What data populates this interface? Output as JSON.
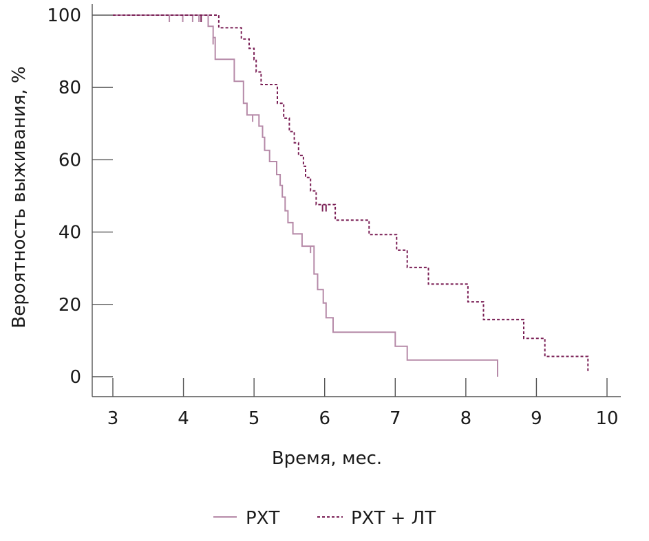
{
  "chart_data": {
    "type": "line",
    "title": "",
    "xlabel": "Время, мес.",
    "ylabel": "Вероятность выживания, %",
    "xlim": [
      3,
      10
    ],
    "ylim": [
      0,
      100
    ],
    "x_ticks": [
      3,
      4,
      5,
      6,
      7,
      8,
      9,
      10
    ],
    "y_ticks": [
      0,
      20,
      40,
      60,
      80,
      100
    ],
    "grid": false,
    "legend_position": "bottom-center",
    "series": [
      {
        "name": "РХТ",
        "style": "solid",
        "color": "#b68aa8",
        "steps": [
          [
            3.0,
            100
          ],
          [
            4.35,
            96.9
          ],
          [
            4.42,
            93.8
          ],
          [
            4.45,
            87.8
          ],
          [
            4.72,
            81.7
          ],
          [
            4.85,
            75.6
          ],
          [
            4.9,
            72.4
          ],
          [
            5.07,
            69.3
          ],
          [
            5.12,
            66.2
          ],
          [
            5.15,
            62.6
          ],
          [
            5.22,
            59.5
          ],
          [
            5.32,
            55.9
          ],
          [
            5.37,
            52.9
          ],
          [
            5.4,
            49.7
          ],
          [
            5.44,
            45.9
          ],
          [
            5.48,
            42.6
          ],
          [
            5.55,
            39.5
          ],
          [
            5.68,
            36.1
          ],
          [
            5.85,
            28.4
          ],
          [
            5.9,
            24.1
          ],
          [
            5.98,
            20.4
          ],
          [
            6.02,
            16.3
          ],
          [
            6.12,
            12.3
          ],
          [
            7.0,
            8.4
          ],
          [
            7.17,
            4.6
          ],
          [
            8.45,
            0
          ]
        ],
        "censored": [
          [
            3.8,
            100
          ],
          [
            3.99,
            100
          ],
          [
            4.13,
            100
          ],
          [
            4.22,
            100
          ],
          [
            4.42,
            93.8
          ],
          [
            4.98,
            72.4
          ],
          [
            5.8,
            36.1
          ]
        ]
      },
      {
        "name": "РХТ + ЛТ",
        "style": "dashed",
        "color": "#7a1f55",
        "steps": [
          [
            3.0,
            100
          ],
          [
            4.5,
            96.5
          ],
          [
            4.82,
            93.4
          ],
          [
            4.93,
            90.8
          ],
          [
            5.0,
            87.7
          ],
          [
            5.03,
            84.3
          ],
          [
            5.1,
            80.8
          ],
          [
            5.33,
            75.6
          ],
          [
            5.42,
            71.5
          ],
          [
            5.5,
            67.8
          ],
          [
            5.57,
            64.7
          ],
          [
            5.63,
            61.2
          ],
          [
            5.7,
            58.2
          ],
          [
            5.73,
            55.1
          ],
          [
            5.8,
            51.4
          ],
          [
            5.88,
            47.6
          ],
          [
            6.15,
            43.3
          ],
          [
            6.63,
            39.3
          ],
          [
            7.02,
            35.0
          ],
          [
            7.17,
            30.2
          ],
          [
            7.47,
            25.6
          ],
          [
            8.03,
            20.7
          ],
          [
            8.25,
            15.8
          ],
          [
            8.82,
            10.6
          ],
          [
            9.12,
            5.6
          ],
          [
            9.73,
            1.2
          ]
        ],
        "censored": [
          [
            4.25,
            100
          ],
          [
            5.97,
            47.6
          ],
          [
            6.02,
            47.6
          ]
        ]
      }
    ]
  }
}
